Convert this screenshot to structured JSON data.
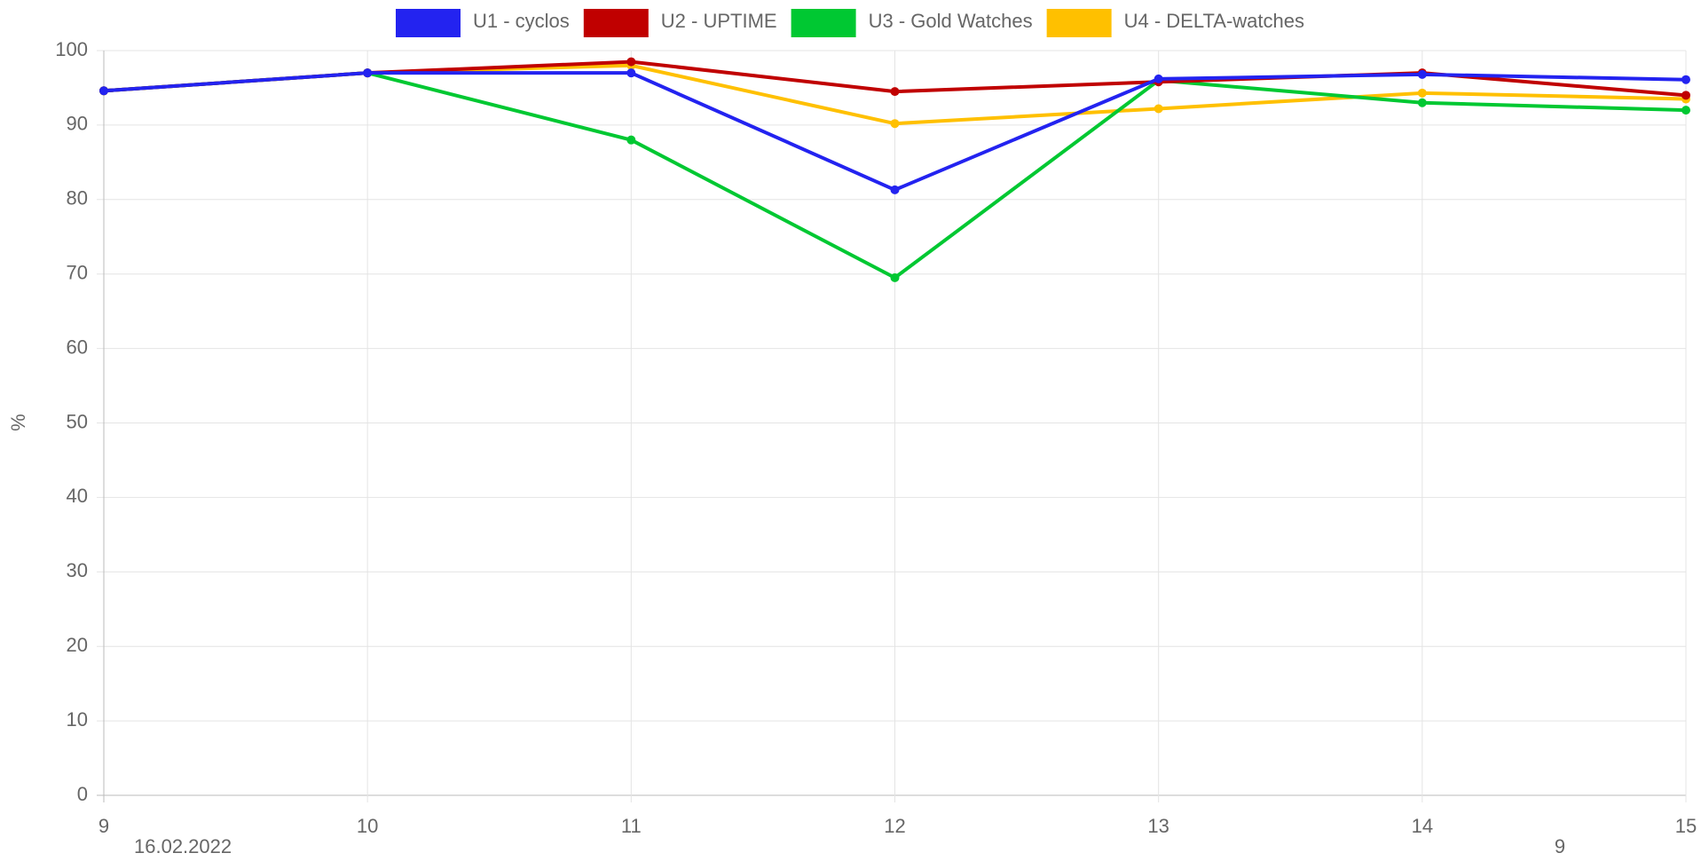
{
  "chart_data": {
    "type": "line",
    "y_label": "%",
    "categories": [
      "9",
      "10",
      "11",
      "12",
      "13",
      "14",
      "15"
    ],
    "series": [
      {
        "name": "U1 - cyclos",
        "color": "#2323f0",
        "values": [
          94.6,
          97,
          97,
          81.3,
          96.2,
          96.8,
          96.1
        ]
      },
      {
        "name": "U2 - UPTIME",
        "color": "#c00000",
        "values": [
          94.6,
          97,
          98.5,
          94.5,
          95.8,
          97,
          94
        ]
      },
      {
        "name": "U3 - Gold Watches",
        "color": "#00c832",
        "values": [
          94.6,
          97,
          88,
          69.5,
          96,
          93,
          92
        ]
      },
      {
        "name": "U4 - DELTA-watches",
        "color": "#ffc000",
        "values": [
          94.6,
          97,
          98,
          90.2,
          92.2,
          94.3,
          93.5
        ]
      }
    ],
    "ylim": [
      0,
      100
    ],
    "yticks": [
      0,
      10,
      20,
      30,
      40,
      50,
      60,
      70,
      80,
      90,
      100
    ],
    "grid": true,
    "legend": "top",
    "annotations": [
      "16.02.2022",
      "9"
    ]
  }
}
